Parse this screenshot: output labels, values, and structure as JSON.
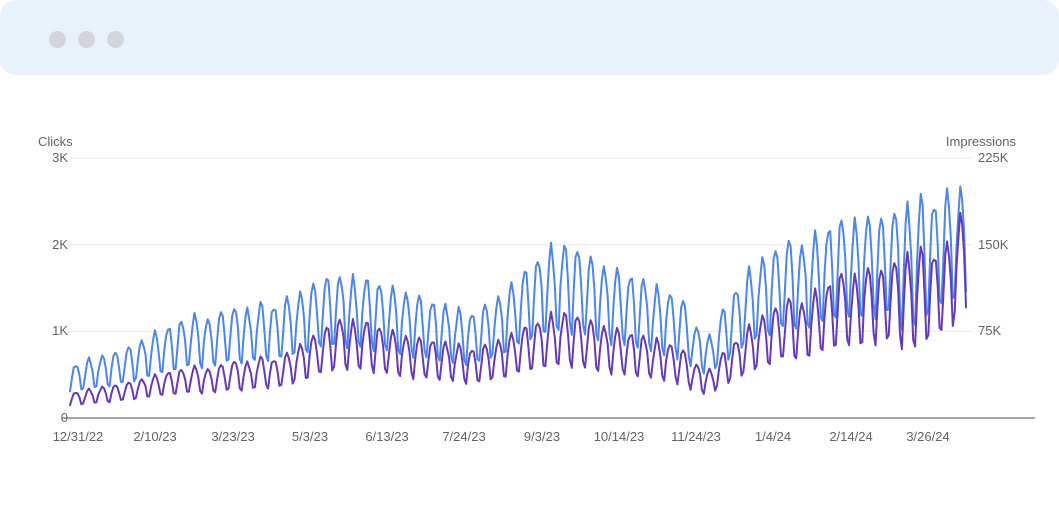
{
  "window": {
    "titlebar_color": "#e9f1fb",
    "dot_color": "#d2d6db",
    "dots": [
      "window-dot-1",
      "window-dot-2",
      "window-dot-3"
    ]
  },
  "colors": {
    "background": "#ffffff",
    "text": "#5f6368",
    "grid": "#e8eaed",
    "axis": "#82878c",
    "clicks_line": "#4a86ec",
    "impressions_line": "#6639b8"
  },
  "chart_data": {
    "type": "line",
    "grid": true,
    "legend_position": "none",
    "left_axis": {
      "label": "Clicks",
      "tick_labels": [
        "3K",
        "2K",
        "1K",
        "0"
      ],
      "min": 0,
      "max": 3000
    },
    "right_axis": {
      "label": "Impressions",
      "tick_labels": [
        "225K",
        "150K",
        "75K"
      ],
      "min": 0,
      "max": 225000
    },
    "x_axis": {
      "tick_labels": [
        "12/31/22",
        "2/10/23",
        "3/23/23",
        "5/3/23",
        "6/13/23",
        "7/24/23",
        "9/3/23",
        "10/14/23",
        "11/24/23",
        "1/4/24",
        "2/14/24",
        "3/26/24"
      ]
    },
    "series": [
      {
        "name": "Clicks",
        "axis": "left",
        "color": "#4a86ec",
        "period": "weekly oscillation, values in clicks",
        "weekly_peaks": [
          620,
          680,
          720,
          760,
          820,
          900,
          980,
          1050,
          1120,
          1180,
          1150,
          1220,
          1280,
          1250,
          1320,
          1300,
          1380,
          1450,
          1550,
          1620,
          1650,
          1600,
          1620,
          1550,
          1500,
          1450,
          1400,
          1350,
          1300,
          1250,
          1220,
          1300,
          1400,
          1550,
          1700,
          1850,
          1950,
          2000,
          1950,
          1850,
          1750,
          1700,
          1650,
          1600,
          1500,
          1450,
          1350,
          1050,
          950,
          1250,
          1500,
          1700,
          1850,
          1950,
          2050,
          2000,
          2100,
          2200,
          2300,
          2250,
          2350,
          2300,
          2400,
          2450,
          2550,
          2500,
          2600,
          2650
        ],
        "weekly_troughs": [
          290,
          320,
          340,
          360,
          390,
          430,
          470,
          500,
          540,
          570,
          550,
          590,
          620,
          600,
          640,
          630,
          670,
          700,
          750,
          780,
          800,
          770,
          780,
          750,
          720,
          700,
          680,
          650,
          630,
          600,
          590,
          630,
          680,
          750,
          820,
          890,
          940,
          960,
          940,
          890,
          840,
          820,
          790,
          770,
          720,
          700,
          650,
          550,
          500,
          600,
          720,
          820,
          890,
          940,
          990,
          960,
          1010,
          1060,
          1110,
          1080,
          1130,
          1110,
          1150,
          950,
          1000,
          1200,
          1250,
          1300
        ]
      },
      {
        "name": "Impressions",
        "axis": "right",
        "color": "#6639b8",
        "period": "weekly oscillation, values in impressions",
        "weekly_peaks": [
          22500,
          24750,
          27000,
          28500,
          30750,
          33750,
          36750,
          39750,
          42000,
          44250,
          42750,
          45750,
          49500,
          48000,
          52500,
          51000,
          55500,
          63750,
          71250,
          78750,
          86250,
          82500,
          84000,
          78750,
          75000,
          71250,
          69000,
          67500,
          65250,
          63000,
          60000,
          63000,
          67500,
          72750,
          78750,
          84000,
          88500,
          91500,
          88500,
          84000,
          79500,
          76500,
          73500,
          71250,
          67500,
          64500,
          58500,
          46500,
          42000,
          56250,
          67500,
          78750,
          88500,
          96000,
          103500,
          99750,
          108750,
          116250,
          126000,
          121500,
          131250,
          127500,
          136500,
          141000,
          146250,
          142500,
          150000,
          176250
        ],
        "weekly_troughs": [
          10500,
          12000,
          12750,
          13500,
          15000,
          16500,
          18000,
          19000,
          20250,
          21000,
          20250,
          21750,
          23250,
          22500,
          25500,
          24500,
          27000,
          30750,
          34500,
          37500,
          41250,
          39750,
          40500,
          37500,
          36000,
          34500,
          33000,
          32500,
          31250,
          30250,
          28500,
          30250,
          32500,
          35000,
          38250,
          40250,
          42500,
          44000,
          42500,
          40250,
          38250,
          36750,
          35250,
          34250,
          32500,
          31000,
          28000,
          22250,
          20250,
          27000,
          32500,
          37750,
          42500,
          46000,
          49750,
          48000,
          52250,
          55750,
          60500,
          58250,
          63000,
          61250,
          65500,
          55500,
          57750,
          68500,
          72000,
          84750
        ]
      }
    ]
  }
}
